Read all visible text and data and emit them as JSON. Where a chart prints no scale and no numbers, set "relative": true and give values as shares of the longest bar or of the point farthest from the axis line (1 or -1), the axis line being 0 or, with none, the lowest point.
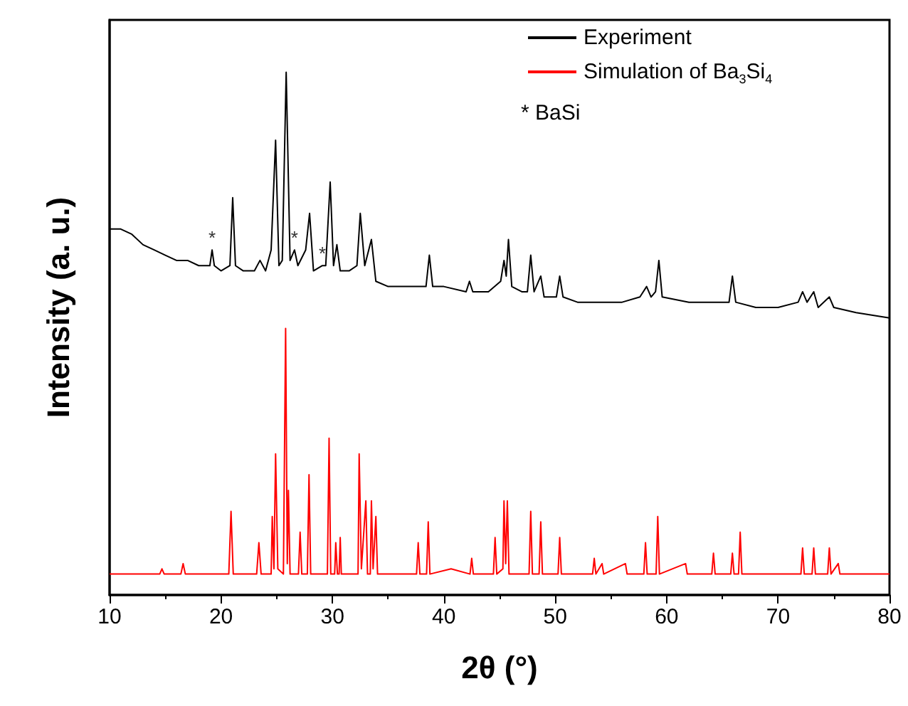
{
  "chart_data": {
    "type": "line",
    "xlabel": "2θ (°)",
    "ylabel": "Intensity (a. u.)",
    "relative": true,
    "xlim": [
      10,
      80
    ],
    "xticks": [
      10,
      20,
      30,
      40,
      50,
      60,
      70,
      80
    ],
    "grid": false,
    "legend": "top right",
    "marker": "none",
    "line_style": "solid",
    "annotations": [
      "* BaSi",
      {
        "text": "*",
        "x": 19.2,
        "y": 0.66
      },
      {
        "text": "*",
        "x": 26.6,
        "y": 0.66
      },
      {
        "text": "*",
        "x": 29.1,
        "y": 0.63
      }
    ],
    "series": [
      {
        "name": "Experiment",
        "color": "#000000",
        "x": [
          10,
          11,
          12,
          13,
          14,
          15,
          16,
          17,
          18,
          19,
          19.2,
          19.4,
          20,
          20.8,
          21.05,
          21.3,
          22,
          23,
          23.5,
          24.0,
          24.5,
          24.9,
          25.2,
          25.5,
          25.85,
          26.2,
          26.6,
          26.9,
          27.6,
          27.95,
          28.3,
          29.1,
          29.4,
          29.8,
          30.1,
          30.4,
          30.7,
          31.5,
          32.2,
          32.5,
          32.9,
          33.5,
          33.9,
          35,
          37,
          38.4,
          38.7,
          39,
          40,
          42,
          42.3,
          42.6,
          44,
          45.1,
          45.4,
          45.6,
          45.8,
          46.1,
          47,
          47.5,
          47.8,
          48.1,
          48.7,
          49,
          50.1,
          50.4,
          50.7,
          52,
          54,
          56,
          57.6,
          58.2,
          58.6,
          59.0,
          59.3,
          59.6,
          62,
          64,
          65.6,
          65.9,
          66.2,
          68,
          70,
          71.8,
          72.2,
          72.6,
          73.2,
          73.6,
          74.6,
          75,
          77,
          80
        ],
        "values": [
          0.7,
          0.7,
          0.69,
          0.67,
          0.66,
          0.65,
          0.64,
          0.64,
          0.63,
          0.63,
          0.66,
          0.63,
          0.62,
          0.63,
          0.76,
          0.63,
          0.62,
          0.62,
          0.64,
          0.62,
          0.66,
          0.87,
          0.63,
          0.64,
          1,
          0.64,
          0.66,
          0.63,
          0.66,
          0.73,
          0.62,
          0.63,
          0.63,
          0.79,
          0.63,
          0.67,
          0.62,
          0.62,
          0.63,
          0.73,
          0.63,
          0.68,
          0.6,
          0.59,
          0.59,
          0.59,
          0.65,
          0.59,
          0.59,
          0.58,
          0.6,
          0.58,
          0.58,
          0.6,
          0.64,
          0.61,
          0.68,
          0.59,
          0.58,
          0.58,
          0.65,
          0.58,
          0.61,
          0.57,
          0.57,
          0.61,
          0.57,
          0.56,
          0.56,
          0.56,
          0.57,
          0.59,
          0.57,
          0.58,
          0.64,
          0.57,
          0.56,
          0.56,
          0.56,
          0.61,
          0.56,
          0.55,
          0.55,
          0.56,
          0.58,
          0.56,
          0.58,
          0.55,
          0.57,
          0.55,
          0.54,
          0.53
        ]
      },
      {
        "name": "Simulation of Ba$_{3}$Si$_{4}$",
        "color": "#ff0000",
        "x": [
          10,
          14.5,
          14.7,
          14.9,
          16.4,
          16.6,
          16.8,
          20.7,
          20.9,
          21.1,
          23.2,
          23.4,
          23.6,
          24.5,
          24.6,
          24.75,
          24.9,
          25.1,
          25.6,
          25.8,
          25.95,
          26.05,
          26.2,
          26.95,
          27.1,
          27.25,
          27.75,
          27.9,
          28.05,
          29.55,
          29.7,
          29.85,
          30.2,
          30.3,
          30.45,
          30.6,
          30.7,
          30.8,
          32.3,
          32.4,
          32.6,
          33.0,
          33.15,
          33.4,
          33.5,
          33.65,
          33.9,
          34.05,
          37.55,
          37.7,
          37.85,
          38.45,
          38.6,
          38.75,
          40.65,
          42.35,
          42.5,
          42.65,
          44.45,
          44.6,
          44.75,
          45.3,
          45.4,
          45.55,
          45.7,
          45.85,
          47.65,
          47.8,
          47.95,
          48.55,
          48.7,
          48.85,
          50.25,
          50.4,
          50.55,
          53.35,
          53.5,
          53.65,
          54.2,
          54.35,
          56.3,
          56.45,
          57.95,
          58.1,
          58.25,
          59.05,
          59.2,
          59.35,
          61.7,
          61.85,
          64.05,
          64.2,
          64.35,
          65.75,
          65.9,
          66.05,
          66.45,
          66.6,
          66.75,
          72.05,
          72.2,
          72.35,
          73.05,
          73.2,
          73.35,
          74.45,
          74.6,
          74.75,
          75.4,
          75.55,
          80
        ],
        "values": [
          0.04,
          0.04,
          0.05,
          0.04,
          0.04,
          0.06,
          0.04,
          0.04,
          0.16,
          0.04,
          0.04,
          0.1,
          0.04,
          0.04,
          0.15,
          0.05,
          0.27,
          0.05,
          0.04,
          0.51,
          0.06,
          0.2,
          0.04,
          0.04,
          0.12,
          0.04,
          0.04,
          0.23,
          0.04,
          0.04,
          0.3,
          0.04,
          0.04,
          0.1,
          0.04,
          0.04,
          0.11,
          0.04,
          0.04,
          0.27,
          0.05,
          0.18,
          0.04,
          0.04,
          0.18,
          0.05,
          0.15,
          0.04,
          0.04,
          0.1,
          0.04,
          0.04,
          0.14,
          0.04,
          0.05,
          0.04,
          0.07,
          0.04,
          0.04,
          0.11,
          0.04,
          0.05,
          0.18,
          0.06,
          0.18,
          0.04,
          0.04,
          0.16,
          0.04,
          0.04,
          0.14,
          0.04,
          0.04,
          0.11,
          0.04,
          0.04,
          0.07,
          0.04,
          0.06,
          0.04,
          0.06,
          0.04,
          0.04,
          0.1,
          0.04,
          0.04,
          0.15,
          0.04,
          0.06,
          0.04,
          0.04,
          0.08,
          0.04,
          0.04,
          0.08,
          0.04,
          0.04,
          0.12,
          0.04,
          0.04,
          0.09,
          0.04,
          0.04,
          0.09,
          0.04,
          0.04,
          0.09,
          0.04,
          0.06,
          0.04,
          0.04
        ]
      }
    ]
  }
}
